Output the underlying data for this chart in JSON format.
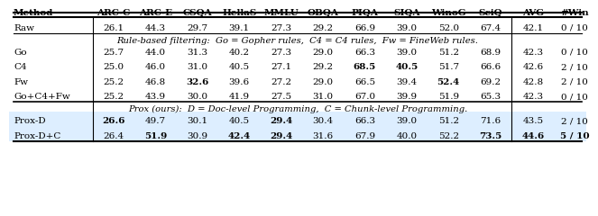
{
  "columns": [
    "Method",
    "ARC-C",
    "ARC-E",
    "CSQA",
    "HellaS",
    "MMLU",
    "OBQA",
    "PIQA",
    "SIQA",
    "WinoG",
    "SciQ",
    "AVG",
    "#Win"
  ],
  "raw_row": {
    "method": "Raw",
    "values": [
      "26.1",
      "44.3",
      "29.7",
      "39.1",
      "27.3",
      "29.2",
      "66.9",
      "39.0",
      "52.0",
      "67.4",
      "42.1",
      "0 / 10"
    ],
    "bold": []
  },
  "note1": "Rule-based filtering:  Go = Gopher rules,  C4 = C4 rules,  Fw = FineWeb rules.",
  "filter_rows": [
    {
      "method": "Go",
      "values": [
        "25.7",
        "44.0",
        "31.3",
        "40.2",
        "27.3",
        "29.0",
        "66.3",
        "39.0",
        "51.2",
        "68.9",
        "42.3",
        "0 / 10"
      ],
      "bold": []
    },
    {
      "method": "C4",
      "values": [
        "25.0",
        "46.0",
        "31.0",
        "40.5",
        "27.1",
        "29.2",
        "68.5",
        "40.5",
        "51.7",
        "66.6",
        "42.6",
        "2 / 10"
      ],
      "bold": [
        6,
        7
      ]
    },
    {
      "method": "Fw",
      "values": [
        "25.2",
        "46.8",
        "32.6",
        "39.6",
        "27.2",
        "29.0",
        "66.5",
        "39.4",
        "52.4",
        "69.2",
        "42.8",
        "2 / 10"
      ],
      "bold": [
        2,
        8
      ]
    },
    {
      "method": "Go+C4+Fw",
      "values": [
        "25.2",
        "43.9",
        "30.0",
        "41.9",
        "27.5",
        "31.0",
        "67.0",
        "39.9",
        "51.9",
        "65.3",
        "42.3",
        "0 / 10"
      ],
      "bold": []
    }
  ],
  "note2": "Prox (ours):  D = Doc-level Programming,  C = Chunk-level Programming.",
  "prox_rows": [
    {
      "method": "Prox-D",
      "values": [
        "26.6",
        "49.7",
        "30.1",
        "40.5",
        "29.4",
        "30.4",
        "66.3",
        "39.0",
        "51.2",
        "71.6",
        "43.5",
        "2 / 10"
      ],
      "bold": [
        0,
        4
      ]
    },
    {
      "method": "Prox-D+C",
      "values": [
        "26.4",
        "51.9",
        "30.9",
        "42.4",
        "29.4",
        "31.6",
        "67.9",
        "40.0",
        "52.2",
        "73.5",
        "44.6",
        "5 / 10"
      ],
      "bold": [
        1,
        3,
        4,
        9,
        10,
        11
      ]
    }
  ],
  "prox_bg": "#ddeeff",
  "font_size": 7.5,
  "background_color": "#ffffff"
}
